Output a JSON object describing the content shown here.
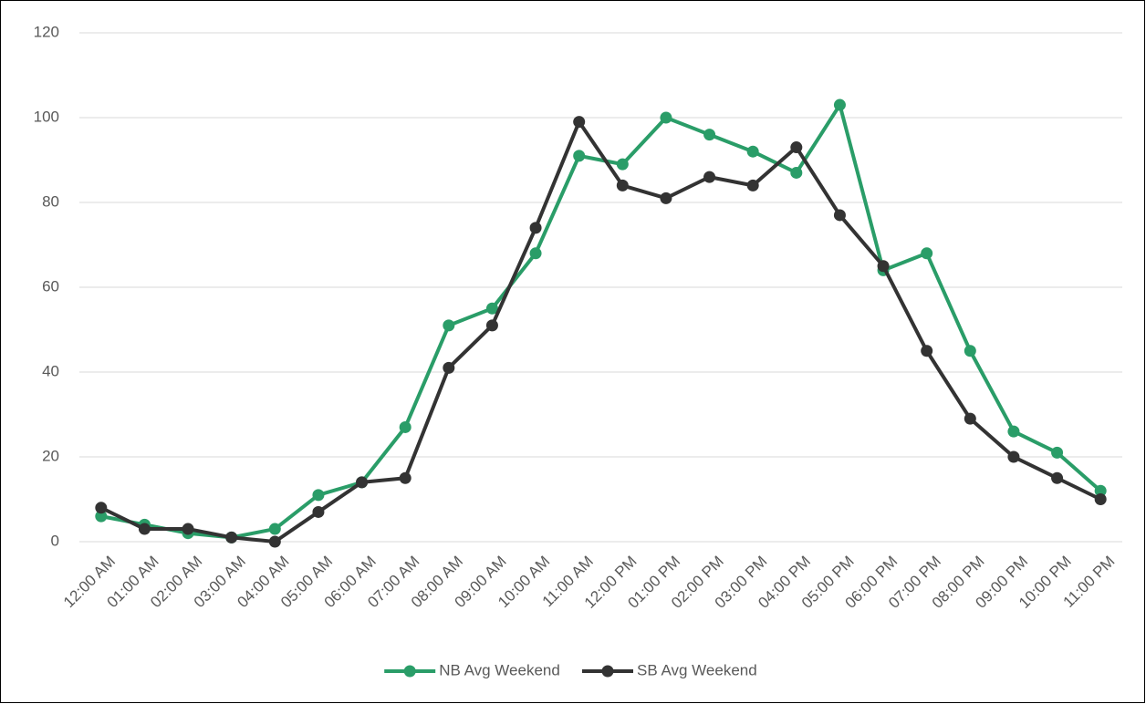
{
  "chart_data": {
    "type": "line",
    "categories": [
      "12:00 AM",
      "01:00 AM",
      "02:00 AM",
      "03:00 AM",
      "04:00 AM",
      "05:00 AM",
      "06:00 AM",
      "07:00 AM",
      "08:00 AM",
      "09:00 AM",
      "10:00 AM",
      "11:00 AM",
      "12:00 PM",
      "01:00 PM",
      "02:00 PM",
      "03:00 PM",
      "04:00 PM",
      "05:00 PM",
      "06:00 PM",
      "07:00 PM",
      "08:00 PM",
      "09:00 PM",
      "10:00 PM",
      "11:00 PM"
    ],
    "series": [
      {
        "name": "NB Avg Weekend",
        "color": "#2a9d68",
        "values": [
          6,
          4,
          2,
          1,
          3,
          11,
          14,
          27,
          51,
          55,
          68,
          91,
          89,
          100,
          96,
          92,
          87,
          103,
          64,
          68,
          45,
          26,
          21,
          12
        ]
      },
      {
        "name": "SB Avg Weekend",
        "color": "#333333",
        "values": [
          8,
          3,
          3,
          1,
          0,
          7,
          14,
          15,
          41,
          51,
          74,
          99,
          84,
          81,
          86,
          84,
          93,
          77,
          65,
          45,
          29,
          20,
          15,
          10
        ]
      }
    ],
    "ylim": [
      0,
      120
    ],
    "yticks": [
      0,
      20,
      40,
      60,
      80,
      100,
      120
    ],
    "grid": true,
    "legend": "bottom"
  }
}
